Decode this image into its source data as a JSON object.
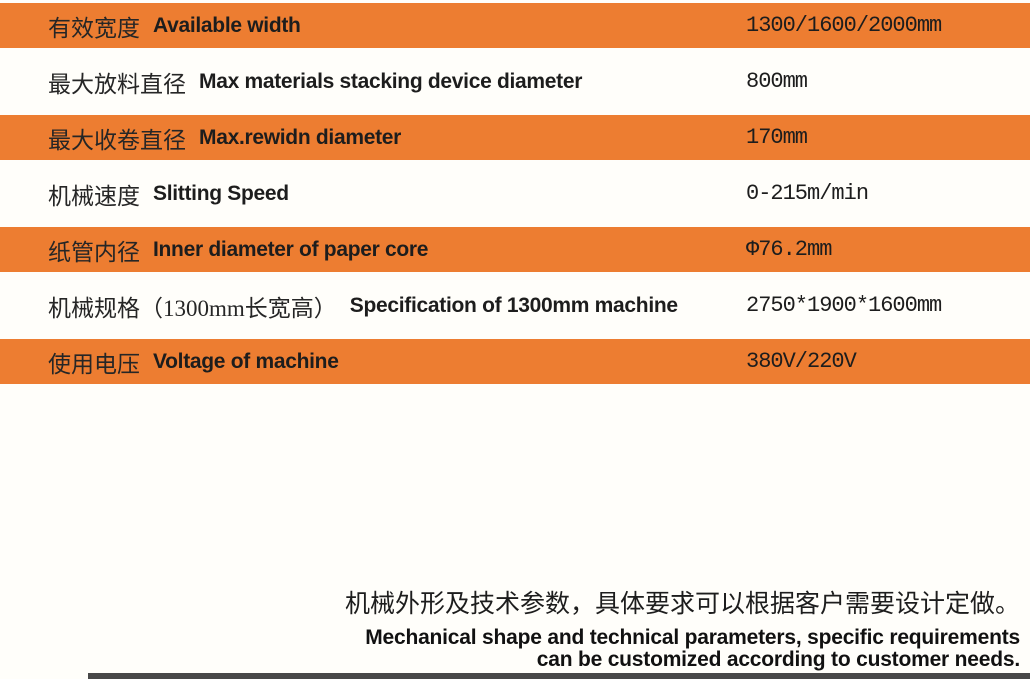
{
  "table": {
    "rows": [
      {
        "label_zh": "有效宽度",
        "label_en": "Available width",
        "value": "1300/1600/2000mm",
        "highlight": true
      },
      {
        "label_zh": "最大放料直径",
        "label_en": "Max materials stacking device diameter",
        "value": "800mm",
        "highlight": false
      },
      {
        "label_zh": "最大收卷直径",
        "label_en": "Max.rewidn diameter",
        "value": "170mm",
        "highlight": true
      },
      {
        "label_zh": "机械速度",
        "label_en": "Slitting Speed",
        "value": "0-215m/min",
        "highlight": false
      },
      {
        "label_zh": "纸管内径",
        "label_en": "Inner diameter of paper core",
        "value": "Φ76.2mm",
        "highlight": true
      },
      {
        "label_zh": "机械规格（1300mm长宽高）",
        "label_en": "Specification of 1300mm machine",
        "value": "2750*1900*1600mm",
        "highlight": false
      },
      {
        "label_zh": "使用电压",
        "label_en": "Voltage of machine",
        "value": "380V/220V",
        "highlight": true
      }
    ]
  },
  "footer": {
    "note_zh": "机械外形及技术参数，具体要求可以根据客户需要设计定做。",
    "note_en_line1": "Mechanical shape and technical parameters, specific requirements",
    "note_en_line2": "can be customized according to customer needs."
  },
  "colors": {
    "accent_orange": "#ED7D31",
    "background": "#FFFEFA",
    "text": "#1d1d1d",
    "bottom_bar": "#484848"
  }
}
